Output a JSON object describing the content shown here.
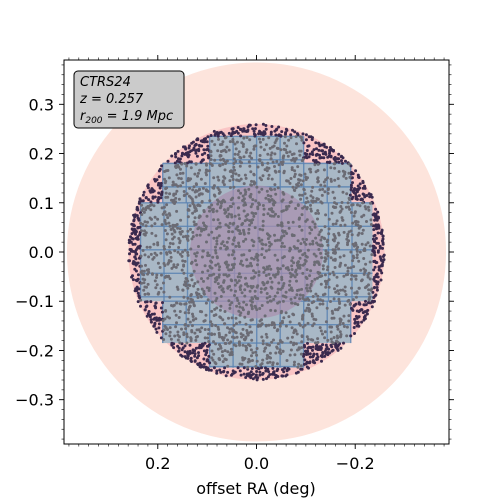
{
  "chart_data": {
    "type": "scatter",
    "title": "",
    "xlabel": "offset RA (deg)",
    "ylabel": "",
    "xlim": [
      0.39,
      -0.39
    ],
    "ylim": [
      -0.39,
      0.39
    ],
    "x_inverted": true,
    "aspect": "equal",
    "grid": false,
    "x_ticks": [
      0.2,
      0.0,
      -0.2
    ],
    "x_tick_labels": [
      "0.2",
      "0.0",
      "−0.2"
    ],
    "y_ticks": [
      0.3,
      0.2,
      0.1,
      0.0,
      -0.1,
      -0.2,
      -0.3
    ],
    "y_tick_labels": [
      "0.3",
      "0.2",
      "0.1",
      "0.0",
      "−0.1",
      "−0.2",
      "−0.3"
    ],
    "annotation": {
      "placement": "top-left",
      "cluster": "CTRS24",
      "redshift": "z = 0.257",
      "radius_prefix": "r",
      "radius_subscript": "200",
      "radius_value": " = 1.9 Mpc"
    },
    "regions": {
      "outer_circle_radius": 0.385,
      "inner_circle_radius": 0.26,
      "core_circle_radius": 0.135,
      "outer_color": "#fde4dc",
      "inner_color": "#fac5c5",
      "core_color": "#a98fae"
    },
    "coverage_mosaic": {
      "fill_color": "#a9b8c6",
      "grid_color": "#5b83b1",
      "rows": [
        {
          "y_range": [
            0.18,
            0.235
          ],
          "x_range": [
            0.095,
            -0.095
          ]
        },
        {
          "y_range": [
            0.1,
            0.18
          ],
          "x_range": [
            0.19,
            -0.19
          ]
        },
        {
          "y_range": [
            -0.1,
            0.1
          ],
          "x_range": [
            0.235,
            -0.235
          ]
        },
        {
          "y_range": [
            -0.185,
            -0.1
          ],
          "x_range": [
            0.19,
            -0.19
          ]
        },
        {
          "y_range": [
            -0.235,
            -0.185
          ],
          "x_range": [
            0.095,
            -0.095
          ]
        }
      ]
    },
    "series": [
      {
        "marker_color": "#3a2a4e",
        "region": "outside-coverage",
        "extent_radius": 0.26,
        "count": 900
      },
      {
        "marker_color": "#6b6b74",
        "region": "inside-coverage",
        "extent_radius": 0.26,
        "count": 1900
      }
    ]
  }
}
